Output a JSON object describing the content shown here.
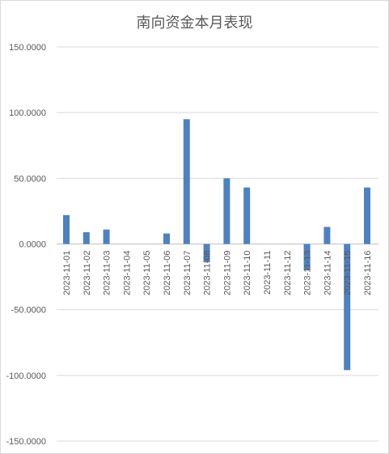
{
  "chart_data": {
    "type": "bar",
    "title": "南向资金本月表现",
    "xlabel": "",
    "ylabel": "",
    "ylim": [
      -150,
      150
    ],
    "yticks": [
      150,
      100,
      50,
      0,
      -50,
      -100,
      -150
    ],
    "ytick_labels": [
      "150.0000",
      "100.0000",
      "50.0000",
      "0.0000",
      "-50.0000",
      "-100.0000",
      "-150.0000"
    ],
    "grid": true,
    "bar_color": "#4f81bd",
    "categories": [
      "2023-11-01",
      "2023-11-02",
      "2023-11-03",
      "2023-11-04",
      "2023-11-05",
      "2023-11-06",
      "2023-11-07",
      "2023-11-08",
      "2023-11-09",
      "2023-11-10",
      "2023-11-11",
      "2023-11-12",
      "2023-11-13",
      "2023-11-14",
      "2023-11-15",
      "2023-11-16"
    ],
    "values": [
      22,
      9,
      11,
      0,
      0,
      8,
      95,
      -14,
      50,
      43,
      0,
      0,
      -20,
      13,
      -96,
      43
    ]
  }
}
